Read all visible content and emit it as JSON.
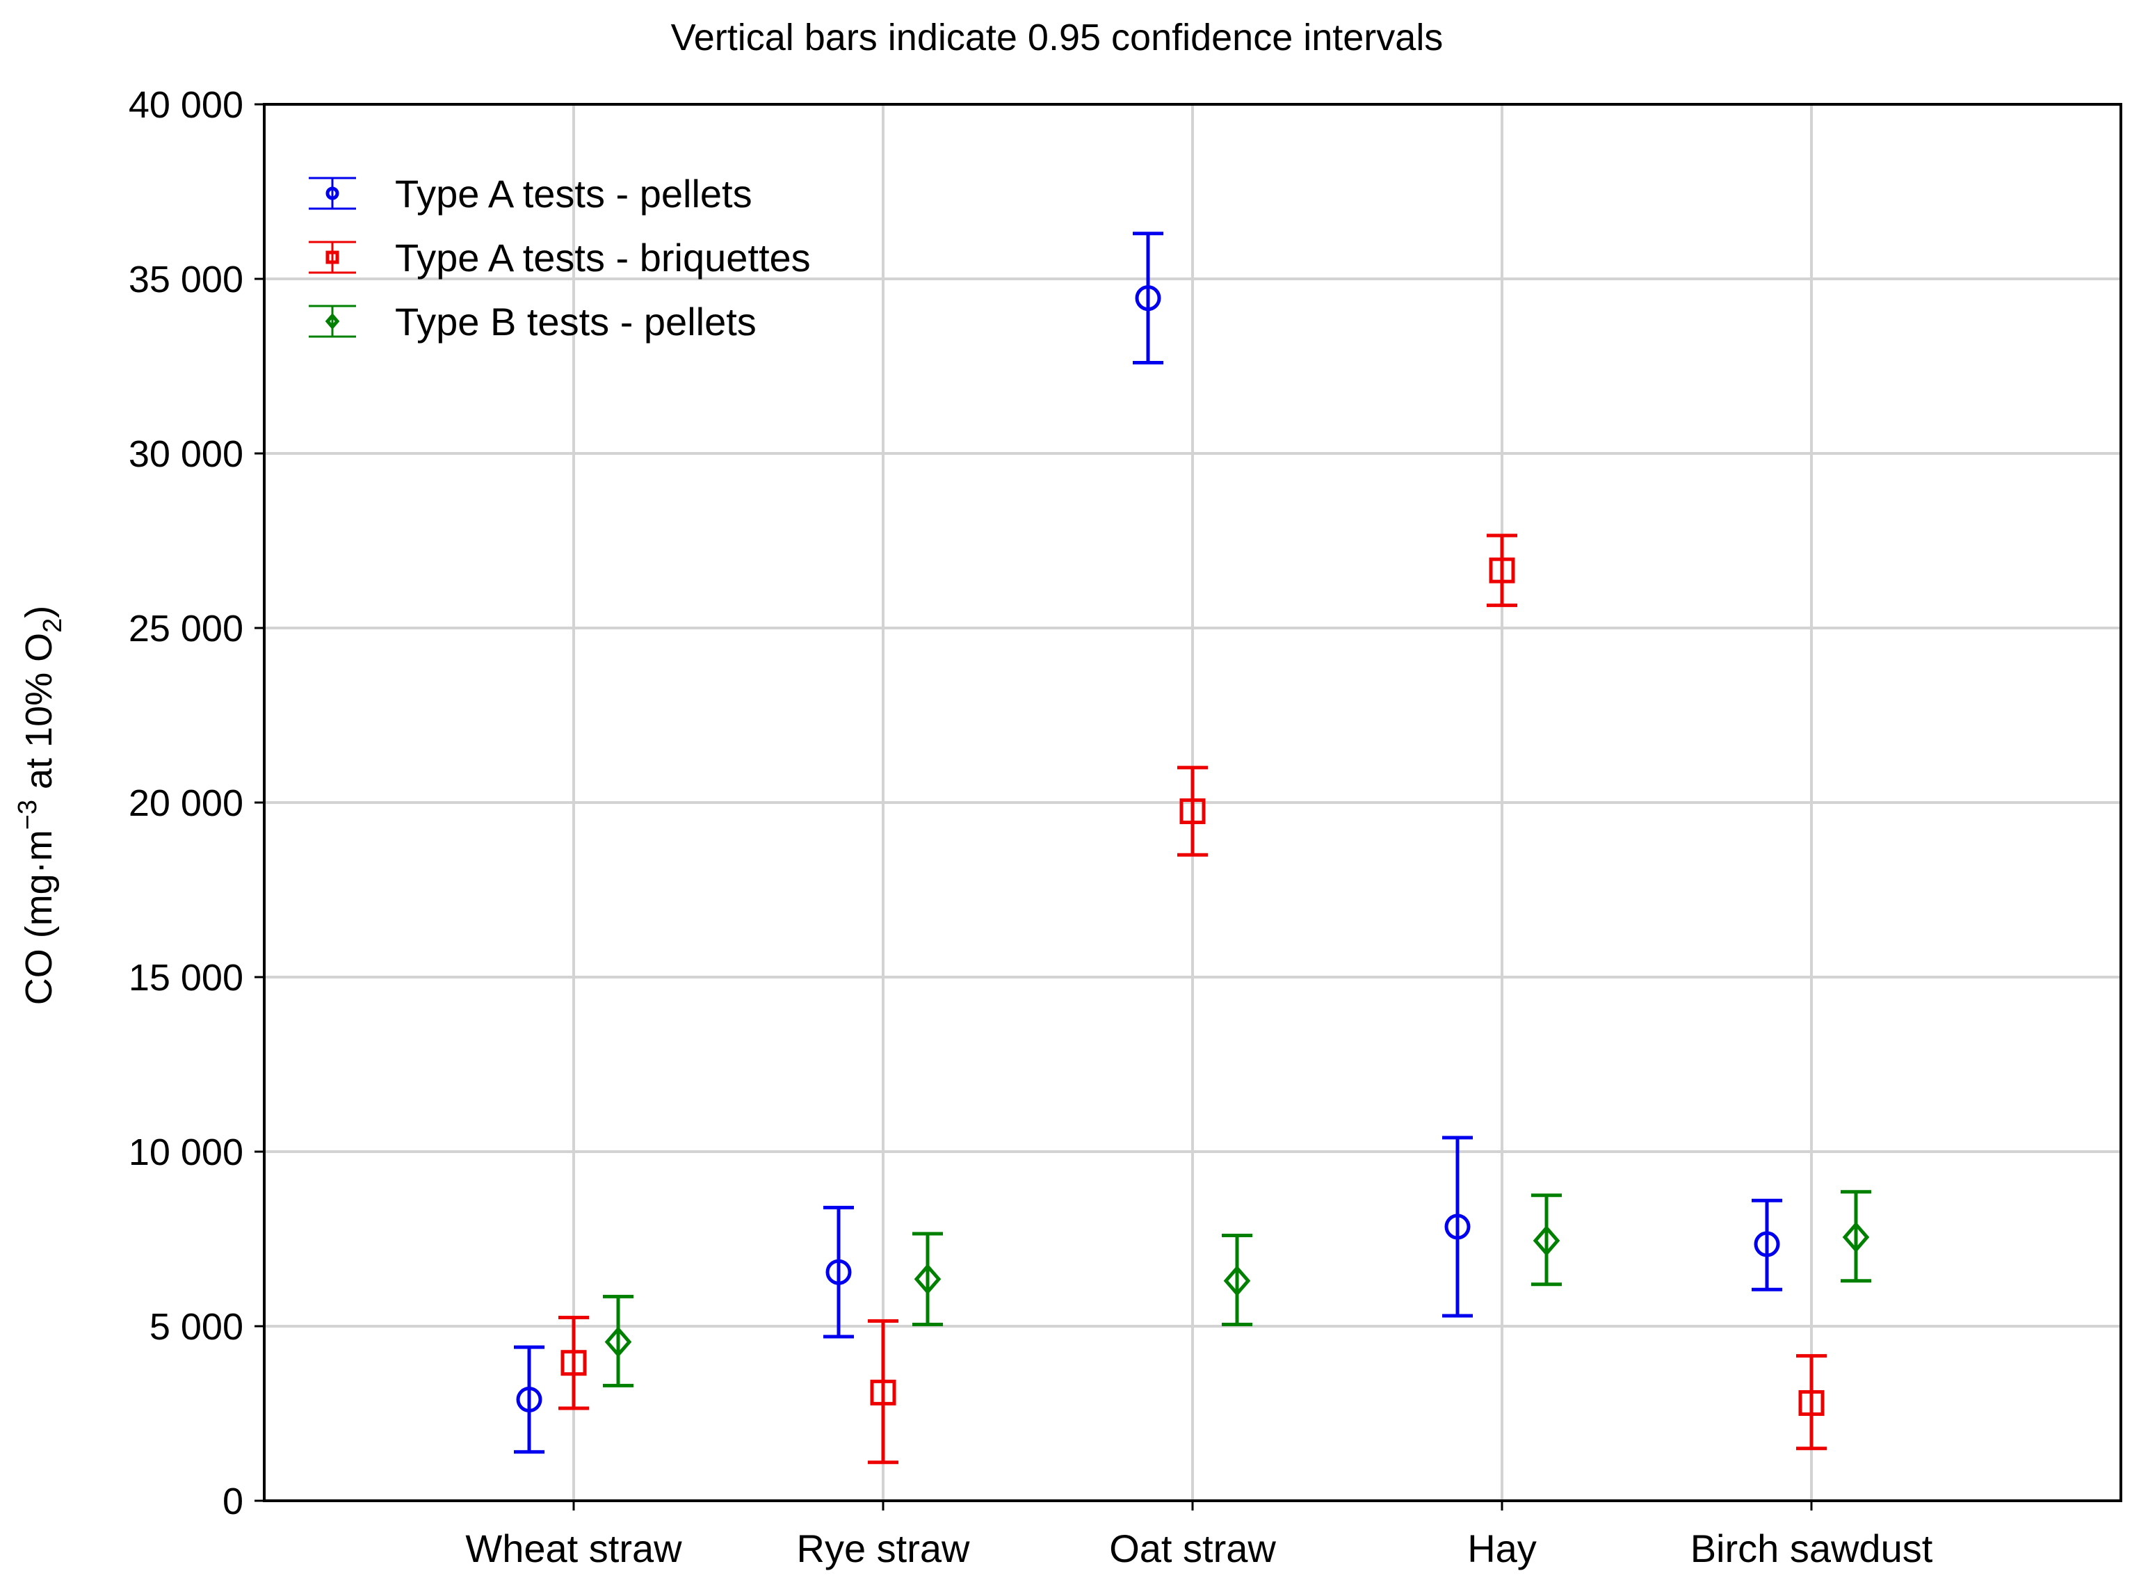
{
  "chart_data": {
    "type": "scatter",
    "subtitle": "Vertical bars indicate 0.95 confidence intervals",
    "ylabel": {
      "prefix": "CO (mg·m",
      "sup": "−3",
      "middle": " at 10% O",
      "sub": "2",
      "suffix": ")"
    },
    "xlabel": "",
    "categories": [
      "Wheat straw",
      "Rye straw",
      "Oat straw",
      "Hay",
      "Birch sawdust"
    ],
    "ylim": [
      0,
      40000
    ],
    "yticks": [
      0,
      5000,
      10000,
      15000,
      20000,
      25000,
      30000,
      35000,
      40000
    ],
    "ytick_labels": [
      "0",
      "5 000",
      "10 000",
      "15 000",
      "20 000",
      "25 000",
      "30 000",
      "35 000",
      "40 000"
    ],
    "grid": true,
    "legend_position": "top-left",
    "series": [
      {
        "name": "Type A tests - pellets",
        "color": "#0000ee",
        "marker": "circle",
        "points": [
          {
            "category": "Wheat straw",
            "mean": 2900,
            "low": 1400,
            "high": 4400
          },
          {
            "category": "Rye straw",
            "mean": 6550,
            "low": 4700,
            "high": 8400
          },
          {
            "category": "Oat straw",
            "mean": 34450,
            "low": 32600,
            "high": 36300
          },
          {
            "category": "Hay",
            "mean": 7850,
            "low": 5300,
            "high": 10400
          },
          {
            "category": "Birch sawdust",
            "mean": 7350,
            "low": 6050,
            "high": 8600
          }
        ]
      },
      {
        "name": "Type A tests - briquettes",
        "color": "#ee0000",
        "marker": "square",
        "points": [
          {
            "category": "Wheat straw",
            "mean": 3950,
            "low": 2650,
            "high": 5250
          },
          {
            "category": "Rye straw",
            "mean": 3100,
            "low": 1100,
            "high": 5150
          },
          {
            "category": "Oat straw",
            "mean": 19750,
            "low": 18500,
            "high": 21000
          },
          {
            "category": "Hay",
            "mean": 26650,
            "low": 25650,
            "high": 27650
          },
          {
            "category": "Birch sawdust",
            "mean": 2800,
            "low": 1500,
            "high": 4150
          }
        ]
      },
      {
        "name": "Type B tests - pellets",
        "color": "#008000",
        "marker": "diamond",
        "points": [
          {
            "category": "Wheat straw",
            "mean": 4550,
            "low": 3300,
            "high": 5850
          },
          {
            "category": "Rye straw",
            "mean": 6350,
            "low": 5050,
            "high": 7650
          },
          {
            "category": "Oat straw",
            "mean": 6300,
            "low": 5050,
            "high": 7600
          },
          {
            "category": "Hay",
            "mean": 7450,
            "low": 6200,
            "high": 8750
          },
          {
            "category": "Birch sawdust",
            "mean": 7550,
            "low": 6300,
            "high": 8850
          }
        ]
      }
    ]
  }
}
